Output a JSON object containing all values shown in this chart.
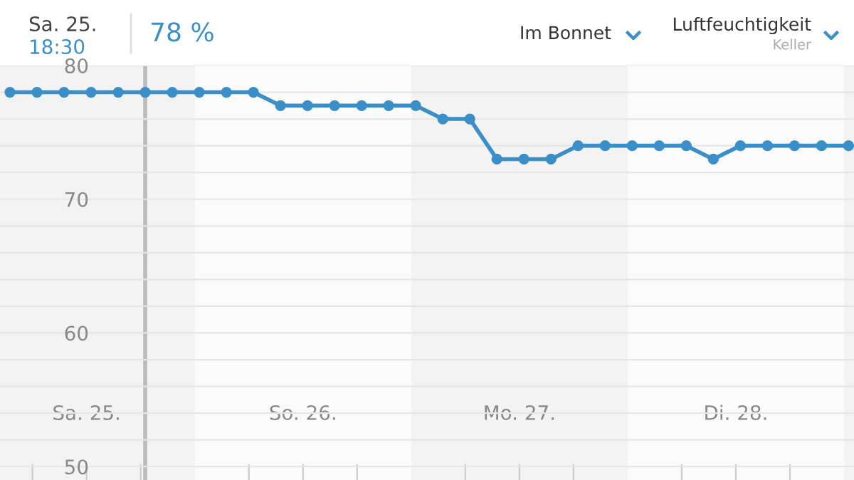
{
  "chart_data": {
    "type": "line",
    "title": "Luftfeuchtigkeit",
    "subtitle": "Keller",
    "annotations": [
      "Sa. 25.",
      "18:30",
      "78 %",
      "Im Bonnet"
    ],
    "x": [
      25.146,
      25.271,
      25.396,
      25.521,
      25.646,
      25.771,
      25.896,
      26.021,
      26.146,
      26.271,
      26.396,
      26.521,
      26.646,
      26.771,
      26.896,
      27.021,
      27.146,
      27.271,
      27.396,
      27.521,
      27.646,
      27.771,
      27.896,
      28.021,
      28.146,
      28.271,
      28.396,
      28.521,
      28.646,
      28.771,
      28.896,
      29.021
    ],
    "series": [
      {
        "color": "#3a8fc8",
        "values": [
          78,
          78,
          78,
          78,
          78,
          78,
          78,
          78,
          78,
          78,
          77,
          77,
          77,
          77,
          77,
          77,
          76,
          76,
          73,
          73,
          73,
          74,
          74,
          74,
          74,
          74,
          73,
          74,
          74,
          74,
          74,
          74
        ]
      }
    ],
    "xlim": [
      25.1,
      29.046
    ],
    "xticks": [
      {
        "value": 25.25,
        "label": null
      },
      {
        "value": 25.5,
        "label": "Sa. 25."
      },
      {
        "value": 25.75,
        "label": null
      },
      {
        "value": 26.25,
        "label": null
      },
      {
        "value": 26.5,
        "label": "So. 26."
      },
      {
        "value": 26.75,
        "label": null
      },
      {
        "value": 27.25,
        "label": null
      },
      {
        "value": 27.5,
        "label": "Mo. 27."
      },
      {
        "value": 27.75,
        "label": null
      },
      {
        "value": 28.25,
        "label": null
      },
      {
        "value": 28.5,
        "label": "Di. 28."
      },
      {
        "value": 28.75,
        "label": null
      }
    ],
    "ylim": [
      49,
      80
    ],
    "yticks": [
      50,
      {
        "value": 52,
        "label": null
      },
      {
        "value": 54,
        "label": null
      },
      {
        "value": 56,
        "label": null
      },
      {
        "value": 58,
        "label": null
      },
      60,
      {
        "value": 62,
        "label": null
      },
      {
        "value": 64,
        "label": null
      },
      {
        "value": 66,
        "label": null
      },
      {
        "value": 68,
        "label": null
      },
      70,
      {
        "value": 72,
        "label": null
      },
      {
        "value": 74,
        "label": null
      },
      {
        "value": 76,
        "label": null
      },
      {
        "value": 78,
        "label": null
      },
      80
    ],
    "grid": "y",
    "marker": "circle",
    "line_style": "solid",
    "legend": false,
    "ref_lines": [
      {
        "axis": "x",
        "value": 25.771,
        "color": "#bbbbbb"
      }
    ],
    "bands": [
      {
        "axis": "x",
        "from": 25.1,
        "to": 26,
        "color": "#f3f3f3"
      },
      {
        "axis": "x",
        "from": 27,
        "to": 28,
        "color": "#f3f3f3"
      },
      {
        "axis": "x",
        "from": 29,
        "to": 29.046,
        "color": "#f3f3f3"
      }
    ]
  }
}
